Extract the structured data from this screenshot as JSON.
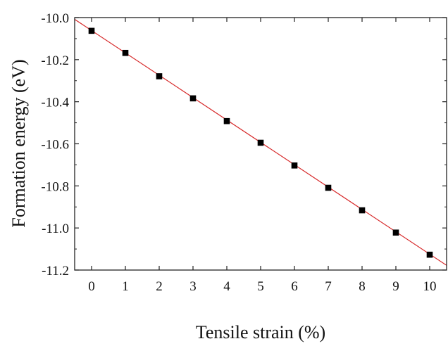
{
  "chart_data": {
    "type": "scatter",
    "xlabel": "Tensile strain (%)",
    "ylabel": "Formation energy (eV)",
    "xlim": [
      -0.5,
      10.5
    ],
    "ylim": [
      -11.2,
      -10.0
    ],
    "x_ticks": [
      0,
      1,
      2,
      3,
      4,
      5,
      6,
      7,
      8,
      9,
      10
    ],
    "y_ticks": [
      -10.0,
      -10.2,
      -10.4,
      -10.6,
      -10.8,
      -11.0,
      -11.2
    ],
    "y_tick_labels": [
      "-10.0",
      "-10.2",
      "-10.4",
      "-10.6",
      "-10.8",
      "-11.0",
      "-11.2"
    ],
    "grid": false,
    "series": [
      {
        "x": [
          0,
          1,
          2,
          3,
          4,
          5,
          6,
          7,
          8,
          9,
          10
        ],
        "values": [
          -10.063,
          -10.168,
          -10.279,
          -10.384,
          -10.492,
          -10.595,
          -10.703,
          -10.809,
          -10.916,
          -11.022,
          -11.127
        ],
        "marker": "square",
        "color": "#000000"
      }
    ],
    "fit_line": {
      "color": "#d62728",
      "slope": -0.1063,
      "intercept": -10.0615
    }
  }
}
